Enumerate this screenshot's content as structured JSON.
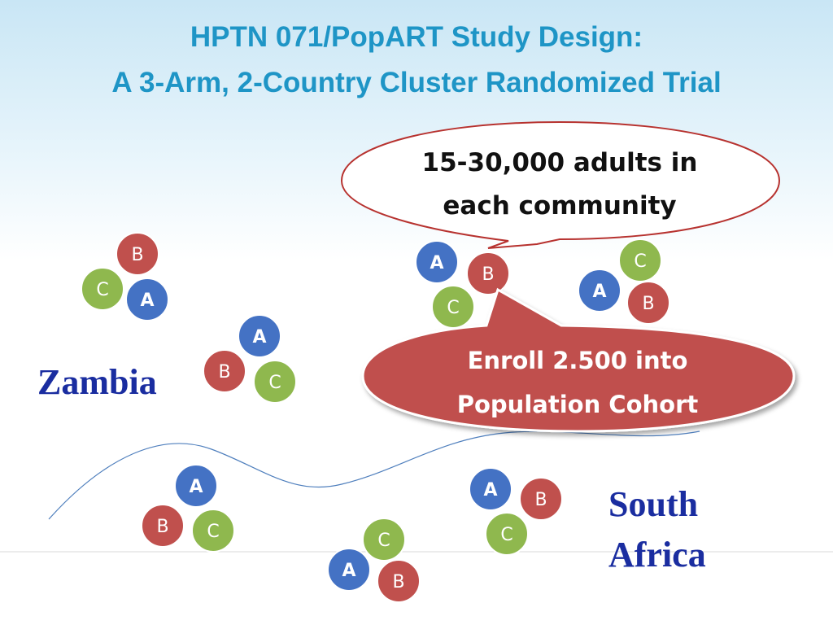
{
  "title": {
    "line1": "HPTN 071/PopART Study Design:",
    "line2": "A 3-Arm, 2-Country Cluster Randomized Trial"
  },
  "speech_bubble": {
    "line1": "15-30,000 adults in",
    "line2": "each community"
  },
  "enroll_bubble": {
    "line1": "Enroll 2.500 into",
    "line2": "Population Cohort"
  },
  "countries": {
    "zambia": "Zambia",
    "south_africa_line1": "South",
    "south_africa_line2": "Africa"
  },
  "arm_colors": {
    "A": "#4472c4",
    "B": "#c0504d",
    "C": "#8fb84e"
  },
  "clusters": [
    {
      "name": "zambia-cluster-1",
      "arms": [
        "B",
        "C",
        "A"
      ]
    },
    {
      "name": "zambia-cluster-2",
      "arms": [
        "A",
        "B",
        "C"
      ]
    },
    {
      "name": "zambia-cluster-3",
      "arms": [
        "A",
        "B",
        "C"
      ]
    },
    {
      "name": "zambia-cluster-4",
      "arms": [
        "C",
        "A",
        "B"
      ]
    },
    {
      "name": "south-africa-cluster-1",
      "arms": [
        "A",
        "B",
        "C"
      ]
    },
    {
      "name": "south-africa-cluster-2",
      "arms": [
        "C",
        "A",
        "B"
      ]
    },
    {
      "name": "south-africa-cluster-3",
      "arms": [
        "A",
        "B",
        "C"
      ]
    }
  ]
}
